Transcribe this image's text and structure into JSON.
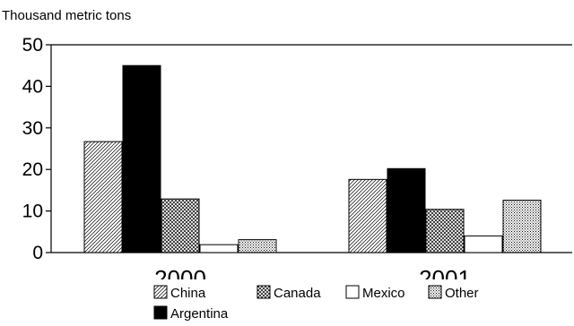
{
  "chart_data": {
    "type": "bar",
    "title": "",
    "ylabel": "Thousand metric tons",
    "xlabel": "",
    "categories": [
      "2000",
      "2001"
    ],
    "ylim": [
      0,
      50
    ],
    "yticks": [
      0,
      10,
      20,
      30,
      40,
      50
    ],
    "grid": false,
    "legend_position": "bottom",
    "series": [
      {
        "name": "China",
        "values": [
          26.7,
          17.6
        ],
        "pattern": "diagonal-hatch"
      },
      {
        "name": "Argentina",
        "values": [
          45.0,
          20.2
        ],
        "pattern": "solid-black"
      },
      {
        "name": "Canada",
        "values": [
          12.9,
          10.4
        ],
        "pattern": "crosshatch"
      },
      {
        "name": "Mexico",
        "values": [
          1.9,
          4.0
        ],
        "pattern": "white"
      },
      {
        "name": "Other",
        "values": [
          3.1,
          12.6
        ],
        "pattern": "dots"
      }
    ],
    "legend_order": [
      "China",
      "Canada",
      "Mexico",
      "Other",
      "Argentina"
    ]
  }
}
